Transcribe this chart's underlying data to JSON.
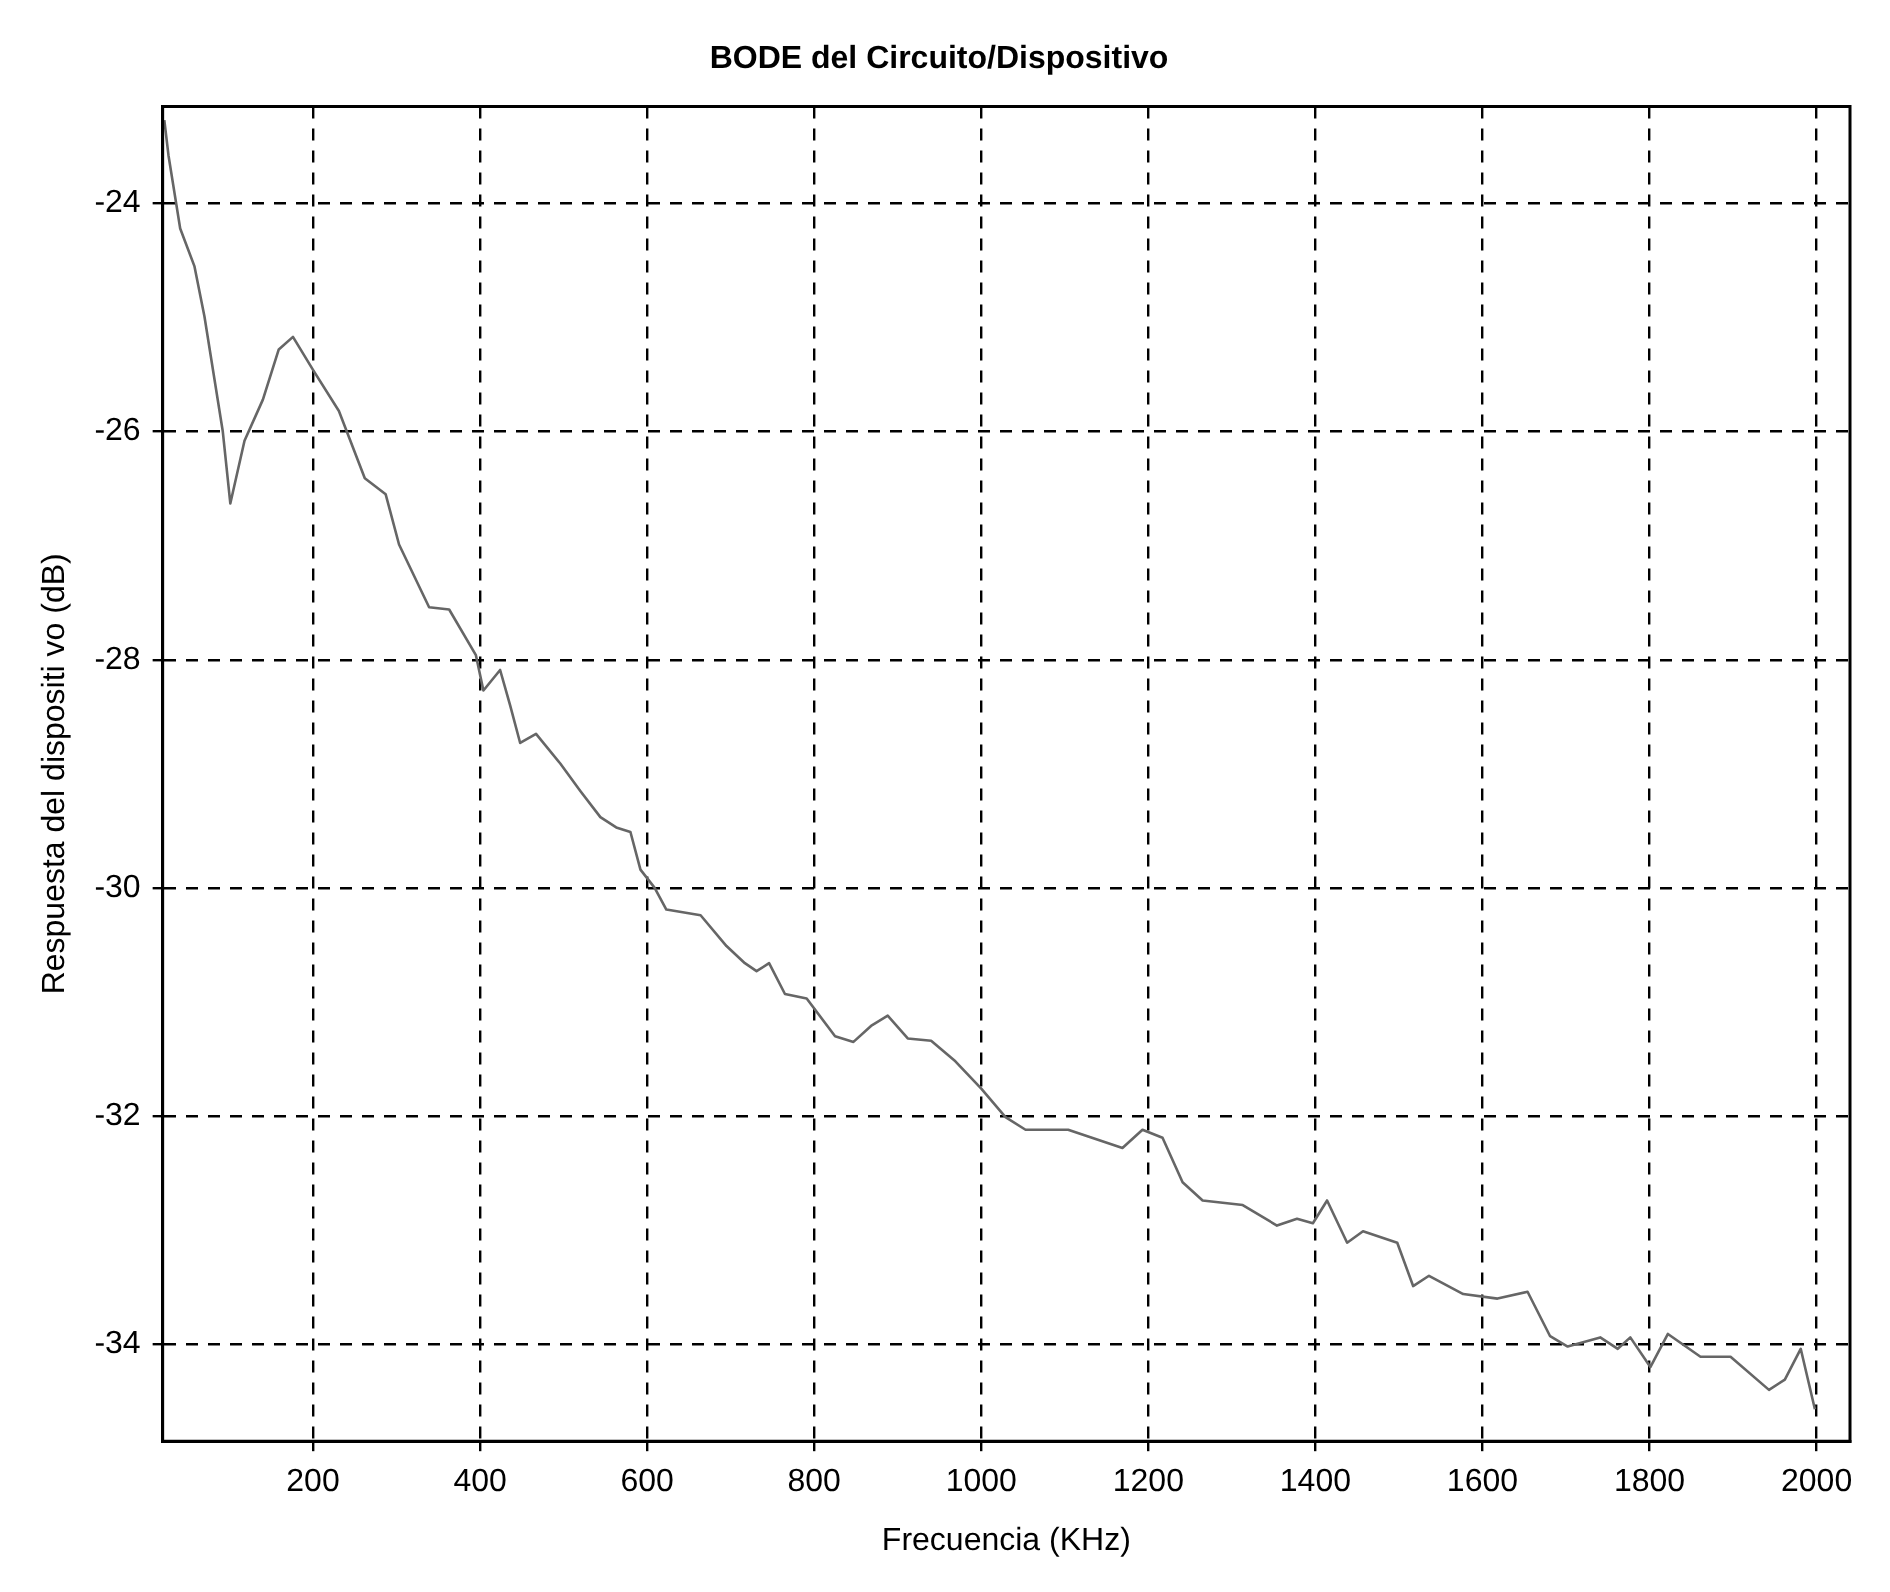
{
  "chart_data": {
    "type": "line",
    "title": "BODE del Circuito/Dispositivo",
    "xlabel": "Frecuencia (KHz)",
    "ylabel": "Respuesta del dispositi vo (dB)",
    "xlim": [
      20,
      2040
    ],
    "ylim": [
      -34.85,
      -23.15
    ],
    "xticks": [
      200,
      400,
      600,
      800,
      1000,
      1200,
      1400,
      1600,
      1800,
      2000
    ],
    "yticks": [
      -34,
      -32,
      -30,
      -28,
      -26,
      -24
    ],
    "grid": true,
    "legend": false,
    "marker": "none",
    "line_style": "solid",
    "x": [
      22,
      27,
      41,
      58,
      70,
      92,
      101,
      118,
      140,
      159,
      176,
      200,
      231,
      262,
      287,
      303,
      339,
      363,
      395,
      404,
      424,
      436,
      448,
      467,
      496,
      520,
      544,
      563,
      580,
      592,
      609,
      623,
      664,
      695,
      717,
      731,
      746,
      765,
      791,
      825,
      847,
      868,
      888,
      912,
      940,
      969,
      1000,
      1029,
      1053,
      1104,
      1169,
      1193,
      1217,
      1241,
      1265,
      1313,
      1354,
      1378,
      1397,
      1414,
      1438,
      1457,
      1498,
      1517,
      1536,
      1577,
      1618,
      1654,
      1681,
      1702,
      1741,
      1762,
      1777,
      1801,
      1822,
      1861,
      1897,
      1943,
      1962,
      1981,
      1998
    ],
    "series": [
      {
        "color": "#666666",
        "values": [
          -23.27,
          -23.58,
          -24.22,
          -24.55,
          -24.99,
          -26.0,
          -26.63,
          -26.08,
          -25.72,
          -25.28,
          -25.17,
          -25.46,
          -25.82,
          -26.41,
          -26.55,
          -26.99,
          -27.54,
          -27.56,
          -27.96,
          -28.27,
          -28.09,
          -28.4,
          -28.73,
          -28.65,
          -28.91,
          -29.15,
          -29.38,
          -29.47,
          -29.51,
          -29.84,
          -30.0,
          -30.19,
          -30.24,
          -30.51,
          -30.66,
          -30.73,
          -30.66,
          -30.93,
          -30.97,
          -31.3,
          -31.35,
          -31.21,
          -31.12,
          -31.32,
          -31.34,
          -31.52,
          -31.76,
          -32.01,
          -32.12,
          -32.12,
          -32.28,
          -32.12,
          -32.19,
          -32.58,
          -32.74,
          -32.78,
          -32.96,
          -32.9,
          -32.94,
          -32.74,
          -33.11,
          -33.01,
          -33.11,
          -33.49,
          -33.4,
          -33.56,
          -33.6,
          -33.54,
          -33.93,
          -34.02,
          -33.94,
          -34.04,
          -33.94,
          -34.2,
          -33.91,
          -34.11,
          -34.11,
          -34.4,
          -34.31,
          -34.04,
          -34.57
        ]
      }
    ]
  }
}
